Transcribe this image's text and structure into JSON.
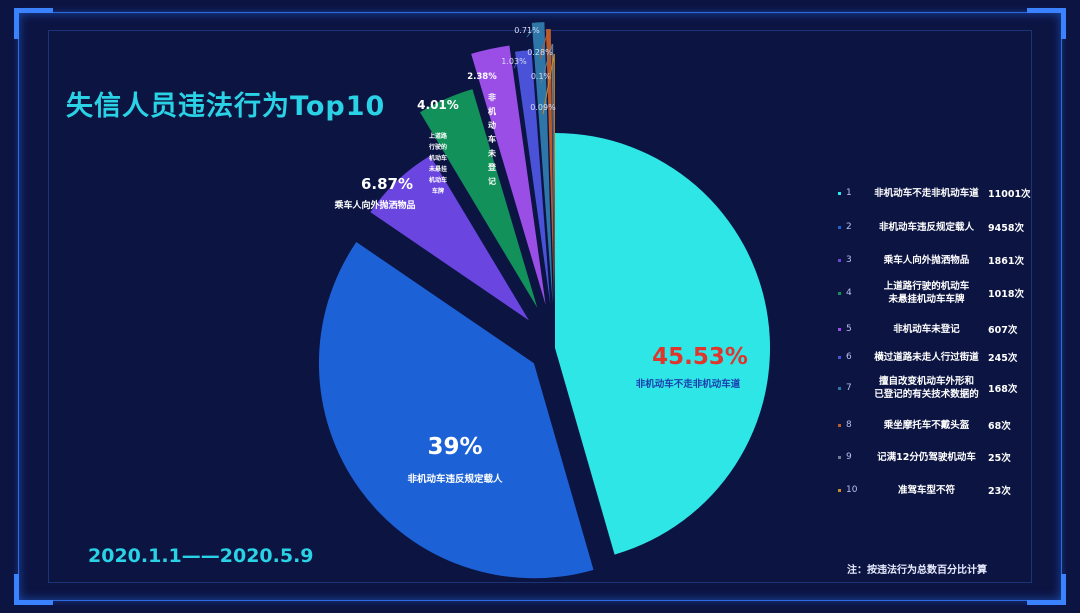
{
  "title": "失信人员违法行为Top10",
  "date_range": "2020.1.1——2020.5.9",
  "note": "注：按违法行为总数百分比计算",
  "colors": {
    "background": "#0c1442",
    "title": "#2ad2e6",
    "big_percent_highlight": "#e0352c",
    "frame": "#2f6be0"
  },
  "chart_data": {
    "type": "pie",
    "title": "失信人员违法行为Top10",
    "slices": [
      {
        "index": "1",
        "label": "非机动车不走非机动车道",
        "count": "11001次",
        "percent": 45.53,
        "percent_label": "45.53%",
        "inner_label": "非机动车不走非机动车道",
        "color": "#2ee6e6"
      },
      {
        "index": "2",
        "label": "非机动车违反规定载人",
        "count": "9458次",
        "percent": 39,
        "percent_label": "39%",
        "inner_label": "非机动车违反规定载人",
        "color": "#1c62d6"
      },
      {
        "index": "3",
        "label": "乘车人向外抛洒物品",
        "count": "1861次",
        "percent": 6.87,
        "percent_label": "6.87%",
        "inner_label": "乘车人向外抛洒物品",
        "color": "#6a45e0"
      },
      {
        "index": "4",
        "label": "上道路行驶的机动车\n未悬挂机动车车牌",
        "count": "1018次",
        "percent": 4.01,
        "percent_label": "4.01%",
        "inner_label": "上道路行驶的机动车未悬挂机动车车牌",
        "color": "#12925a"
      },
      {
        "index": "5",
        "label": "非机动车未登记",
        "count": "607次",
        "percent": 2.38,
        "percent_label": "2.38%",
        "inner_label": "非机动车未登记",
        "color": "#9a4ee6"
      },
      {
        "index": "6",
        "label": "横过道路未走人行过街道",
        "count": "245次",
        "percent": 1.03,
        "percent_label": "1.03%",
        "color": "#4a52d8"
      },
      {
        "index": "7",
        "label": "擅自改变机动车外形和\n已登记的有关技术数据的",
        "count": "168次",
        "percent": 0.71,
        "percent_label": "0.71%",
        "color": "#2f76a8"
      },
      {
        "index": "8",
        "label": "乘坐摩托车不戴头盔",
        "count": "68次",
        "percent": 0.28,
        "percent_label": "0.28%",
        "color": "#b85a2a"
      },
      {
        "index": "9",
        "label": "记满12分仍驾驶机动车",
        "count": "25次",
        "percent": 0.1,
        "percent_label": "0.1%",
        "color": "#6e7a8e"
      },
      {
        "index": "10",
        "label": "准驾车型不符",
        "count": "23次",
        "percent": 0.09,
        "percent_label": "0.09%",
        "color": "#c88a2a"
      }
    ]
  }
}
